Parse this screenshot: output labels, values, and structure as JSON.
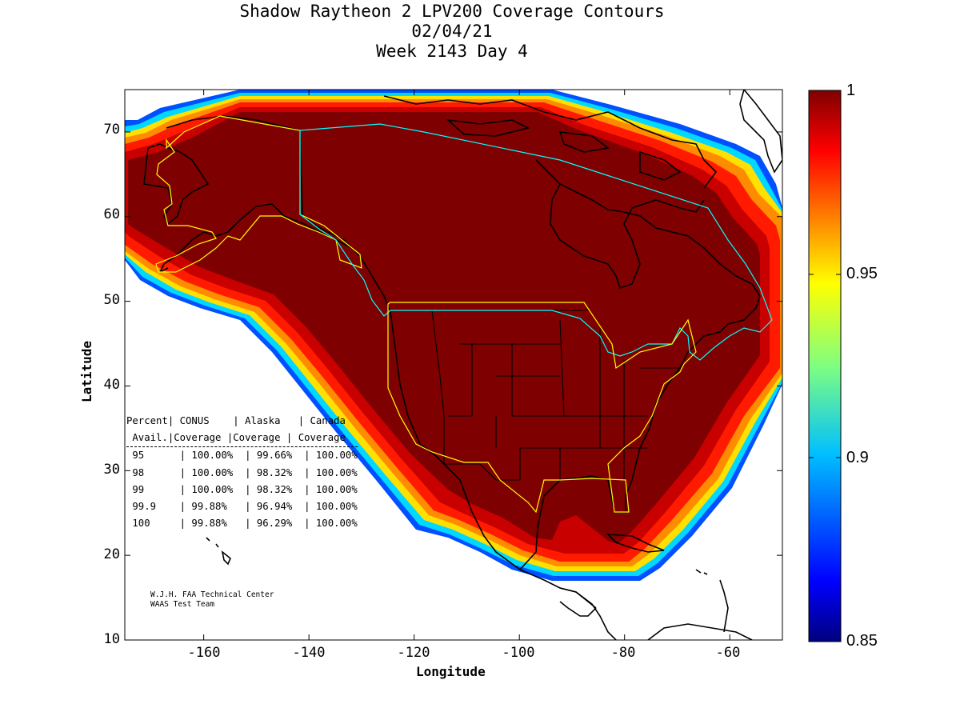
{
  "title": {
    "line1": "Shadow Raytheon 2 LPV200 Coverage Contours",
    "line2": "02/04/21",
    "line3": "Week 2143 Day 4"
  },
  "axes": {
    "xlabel": "Longitude",
    "ylabel": "Latitude",
    "xticks": [
      "-160",
      "-140",
      "-120",
      "-100",
      "-80",
      "-60"
    ],
    "yticks": [
      "70",
      "60",
      "50",
      "40",
      "30",
      "20",
      "10"
    ],
    "xlim": [
      -175,
      -50
    ],
    "ylim": [
      10,
      75
    ]
  },
  "colorbar": {
    "ticks": [
      "1",
      "0.95",
      "0.9",
      "0.85"
    ],
    "range": [
      0.85,
      1.0
    ],
    "colormap": "jet"
  },
  "stats_table": {
    "header1": [
      "Percent",
      "CONUS",
      "Alaska",
      "Canada"
    ],
    "header2": [
      "Avail.",
      "Coverage",
      "Coverage",
      "Coverage"
    ],
    "rows": [
      [
        "95",
        "100.00%",
        "99.66%",
        "100.00%"
      ],
      [
        "98",
        "100.00%",
        "98.32%",
        "100.00%"
      ],
      [
        "99",
        "100.00%",
        "98.32%",
        "100.00%"
      ],
      [
        "99.9",
        "99.88%",
        "96.94%",
        "100.00%"
      ],
      [
        "100",
        "99.88%",
        "96.29%",
        "100.00%"
      ]
    ]
  },
  "credits": {
    "line1": "W.J.H. FAA Technical Center",
    "line2": "WAAS Test Team"
  },
  "colors": {
    "core": "#7f0000",
    "land_outline": "#000000",
    "conus_boundary": "#ffff00",
    "canada_boundary": "#00ffff"
  },
  "chart_data": {
    "type": "heatmap",
    "title": "Shadow Raytheon 2 LPV200 Coverage Contours",
    "xlabel": "Longitude",
    "ylabel": "Latitude",
    "xlim": [
      -175,
      -50
    ],
    "ylim": [
      10,
      75
    ],
    "color_range": [
      0.85,
      1.0
    ],
    "coverage_region_outline_lonlat": [
      [
        -175,
        70
      ],
      [
        -165,
        75
      ],
      [
        -145,
        75
      ],
      [
        -120,
        75
      ],
      [
        -100,
        75
      ],
      [
        -80,
        75
      ],
      [
        -67,
        73
      ],
      [
        -55,
        70
      ],
      [
        -50,
        64
      ],
      [
        -50,
        42
      ],
      [
        -55,
        34
      ],
      [
        -62,
        25
      ],
      [
        -70,
        19
      ],
      [
        -80,
        17
      ],
      [
        -93,
        17
      ],
      [
        -100,
        20
      ],
      [
        -108,
        24
      ],
      [
        -115,
        22
      ],
      [
        -120,
        27
      ],
      [
        -127,
        34
      ],
      [
        -137,
        44
      ],
      [
        -150,
        49
      ],
      [
        -160,
        51
      ],
      [
        -170,
        54
      ],
      [
        -175,
        55
      ]
    ],
    "regions": [
      {
        "name": "CONUS",
        "availability_coverage": {
          "95": 100.0,
          "98": 100.0,
          "99": 100.0,
          "99.9": 99.88,
          "100": 99.88
        }
      },
      {
        "name": "Alaska",
        "availability_coverage": {
          "95": 99.66,
          "98": 98.32,
          "99": 98.32,
          "99.9": 96.94,
          "100": 96.29
        }
      },
      {
        "name": "Canada",
        "availability_coverage": {
          "95": 100.0,
          "98": 100.0,
          "99": 100.0,
          "99.9": 100.0,
          "100": 100.0
        }
      }
    ]
  }
}
